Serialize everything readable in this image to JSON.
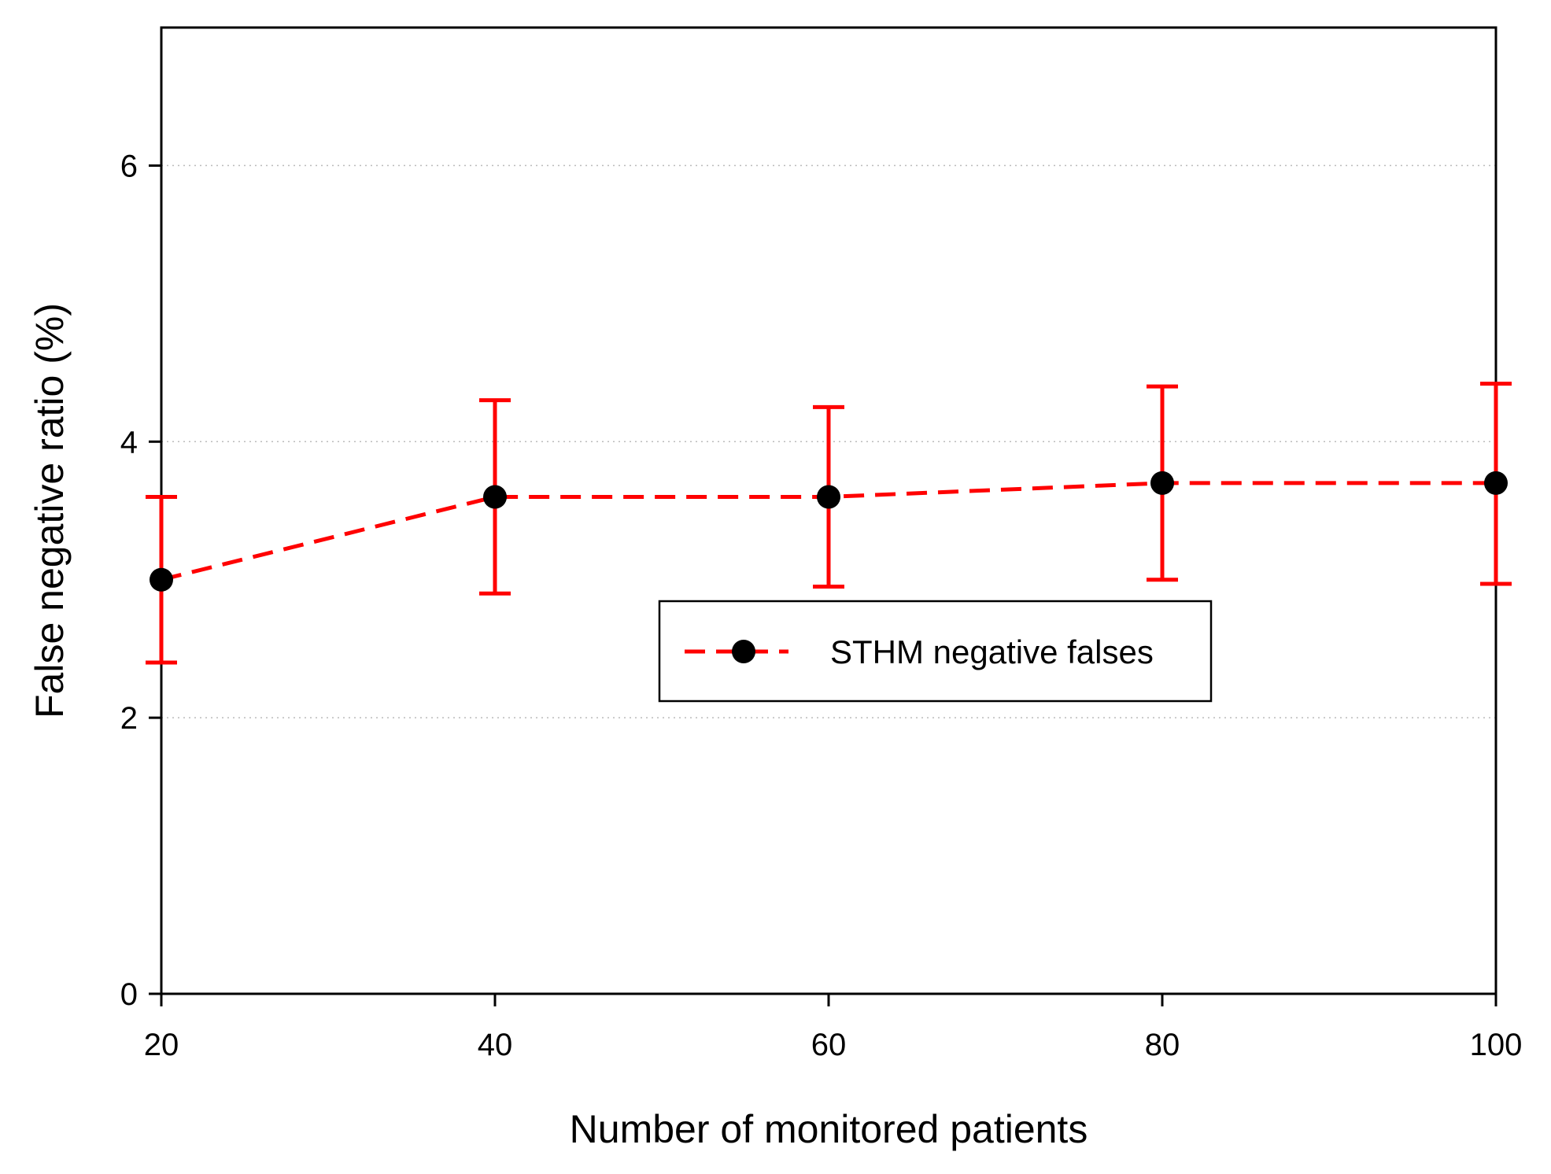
{
  "chart_data": {
    "type": "line",
    "xlabel": "Number of monitored patients",
    "ylabel": "False negative ratio  (%)",
    "x": [
      20,
      40,
      60,
      80,
      100
    ],
    "xlim": [
      20,
      100
    ],
    "ylim": [
      0,
      7
    ],
    "xticks": [
      20,
      40,
      60,
      80,
      100
    ],
    "yticks": [
      0,
      2,
      4,
      6
    ],
    "grid": "horizontal dotted at y ticks",
    "legend_placement": "center-right",
    "series": [
      {
        "name": "STHM negative falses",
        "values": [
          3.0,
          3.6,
          3.6,
          3.7,
          3.7
        ],
        "err_low": [
          2.4,
          2.9,
          2.95,
          3.0,
          2.97
        ],
        "err_high": [
          3.6,
          4.3,
          4.25,
          4.4,
          4.42
        ],
        "line_color": "#ff0000",
        "marker_color": "#000000",
        "line_style": "dashed"
      }
    ]
  }
}
